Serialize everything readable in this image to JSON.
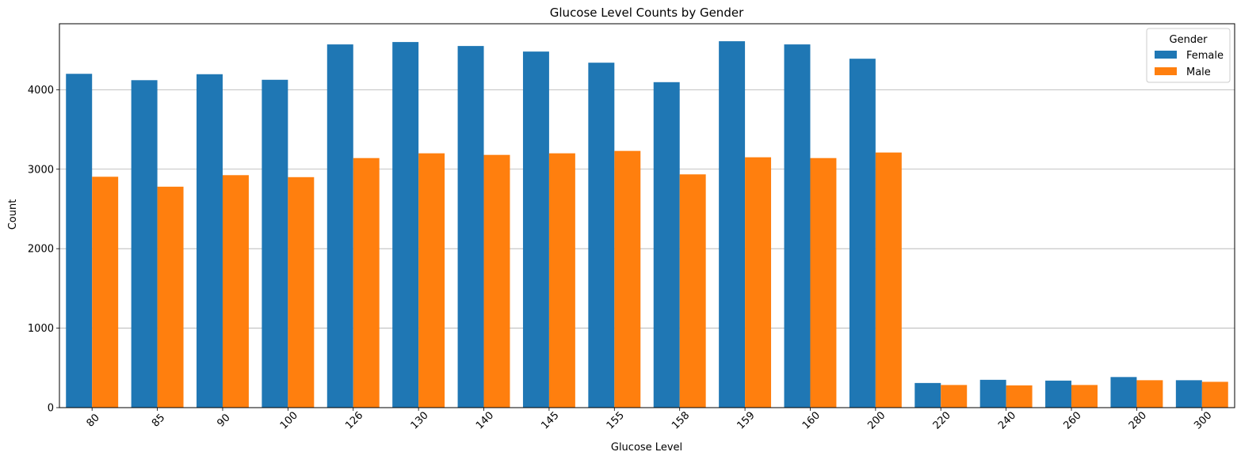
{
  "chart_data": {
    "type": "bar",
    "title": "Glucose Level Counts by Gender",
    "xlabel": "Glucose Level",
    "ylabel": "Count",
    "categories": [
      "80",
      "85",
      "90",
      "100",
      "126",
      "130",
      "140",
      "145",
      "155",
      "158",
      "159",
      "160",
      "200",
      "220",
      "240",
      "260",
      "280",
      "300"
    ],
    "series": [
      {
        "name": "Female",
        "color": "#1f77b4",
        "values": [
          4200,
          4120,
          4195,
          4125,
          4570,
          4600,
          4550,
          4480,
          4340,
          4095,
          4610,
          4570,
          4390,
          310,
          350,
          340,
          385,
          345
        ]
      },
      {
        "name": "Male",
        "color": "#ff7f0e",
        "values": [
          2905,
          2780,
          2925,
          2900,
          3140,
          3200,
          3180,
          3200,
          3230,
          2935,
          3150,
          3140,
          3210,
          285,
          280,
          285,
          345,
          325
        ]
      }
    ],
    "ylim": [
      0,
      4830
    ],
    "yticks": [
      0,
      1000,
      2000,
      3000,
      4000
    ],
    "grid": "y",
    "legend": {
      "title": "Gender",
      "placement": "top-right"
    }
  }
}
